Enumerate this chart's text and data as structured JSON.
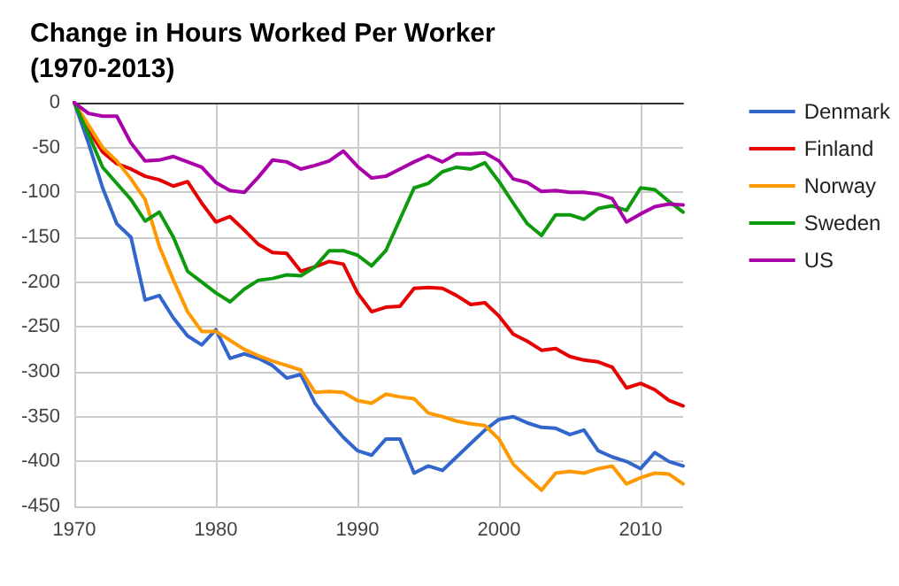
{
  "chart_data": {
    "type": "line",
    "title": "Change in Hours Worked Per Worker\n(1970-2013)",
    "x": [
      1970,
      1971,
      1972,
      1973,
      1974,
      1975,
      1976,
      1977,
      1978,
      1979,
      1980,
      1981,
      1982,
      1983,
      1984,
      1985,
      1986,
      1987,
      1988,
      1989,
      1990,
      1991,
      1992,
      1993,
      1994,
      1995,
      1996,
      1997,
      1998,
      1999,
      2000,
      2001,
      2002,
      2003,
      2004,
      2005,
      2006,
      2007,
      2008,
      2009,
      2010,
      2011,
      2012,
      2013
    ],
    "series": [
      {
        "name": "Denmark",
        "color": "#3366cc",
        "values": [
          0,
          -45,
          -95,
          -135,
          -150,
          -220,
          -215,
          -240,
          -260,
          -270,
          -253,
          -285,
          -280,
          -285,
          -293,
          -307,
          -303,
          -335,
          -355,
          -373,
          -388,
          -393,
          -375,
          -375,
          -413,
          -405,
          -410,
          -395,
          -380,
          -365,
          -353,
          -350,
          -357,
          -362,
          -363,
          -370,
          -365,
          -388,
          -395,
          -400,
          -408,
          -390,
          -400,
          -405
        ]
      },
      {
        "name": "Finland",
        "color": "#e60000",
        "values": [
          0,
          -30,
          -55,
          -68,
          -74,
          -82,
          -86,
          -93,
          -88,
          -112,
          -133,
          -127,
          -142,
          -158,
          -167,
          -168,
          -188,
          -183,
          -177,
          -180,
          -212,
          -233,
          -228,
          -227,
          -207,
          -206,
          -207,
          -215,
          -225,
          -223,
          -238,
          -258,
          -266,
          -276,
          -274,
          -283,
          -287,
          -289,
          -295,
          -318,
          -313,
          -320,
          -332,
          -338
        ]
      },
      {
        "name": "Norway",
        "color": "#ff9900",
        "values": [
          0,
          -25,
          -50,
          -65,
          -85,
          -108,
          -160,
          -198,
          -233,
          -255,
          -255,
          -265,
          -275,
          -282,
          -288,
          -293,
          -298,
          -323,
          -322,
          -323,
          -332,
          -335,
          -325,
          -328,
          -330,
          -346,
          -350,
          -355,
          -358,
          -360,
          -375,
          -403,
          -418,
          -432,
          -413,
          -411,
          -413,
          -408,
          -405,
          -425,
          -418,
          -413,
          -414,
          -425
        ]
      },
      {
        "name": "Sweden",
        "color": "#0d9a0d",
        "values": [
          0,
          -35,
          -72,
          -90,
          -108,
          -132,
          -122,
          -150,
          -188,
          -200,
          -212,
          -222,
          -208,
          -198,
          -196,
          -192,
          -193,
          -183,
          -165,
          -165,
          -170,
          -182,
          -165,
          -130,
          -95,
          -90,
          -77,
          -72,
          -74,
          -67,
          -88,
          -112,
          -135,
          -148,
          -125,
          -125,
          -130,
          -118,
          -115,
          -120,
          -95,
          -97,
          -110,
          -122
        ]
      },
      {
        "name": "US",
        "color": "#aa00aa",
        "values": [
          0,
          -12,
          -15,
          -15,
          -45,
          -65,
          -64,
          -60,
          -66,
          -72,
          -89,
          -98,
          -100,
          -83,
          -64,
          -66,
          -74,
          -70,
          -65,
          -54,
          -71,
          -84,
          -82,
          -74,
          -66,
          -59,
          -66,
          -57,
          -57,
          -56,
          -65,
          -85,
          -89,
          -99,
          -98,
          -100,
          -100,
          -102,
          -107,
          -133,
          -124,
          -116,
          -113,
          -114
        ]
      }
    ],
    "xlim": [
      1970,
      2013
    ],
    "xticks": [
      1970,
      1980,
      1990,
      2000,
      2010
    ],
    "ylim": [
      -450,
      0
    ],
    "yticks": [
      -450,
      -400,
      -350,
      -300,
      -250,
      -200,
      -150,
      -100,
      -50,
      0
    ],
    "grid": true,
    "legend": "right",
    "marker": "none",
    "line_style": "solid"
  }
}
